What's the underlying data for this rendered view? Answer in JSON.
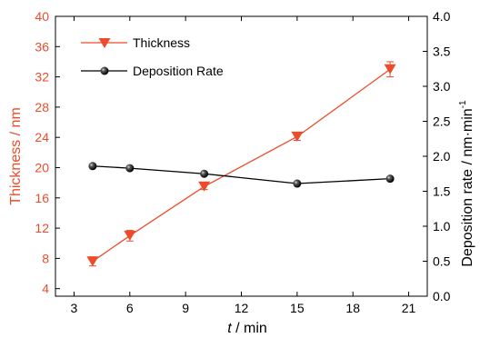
{
  "chart_data": {
    "type": "line",
    "x": {
      "label_italic": "t",
      "label_rest": " / min",
      "ticks": [
        "3",
        "6",
        "9",
        "12",
        "15",
        "18",
        "21"
      ],
      "range": [
        2,
        22
      ]
    },
    "y_left": {
      "label": "Thickness / nm",
      "ticks": [
        "4",
        "8",
        "12",
        "16",
        "20",
        "24",
        "28",
        "32",
        "36",
        "40"
      ],
      "range": [
        3,
        40
      ],
      "color": "#ee4b2b"
    },
    "y_right": {
      "label": "Deposition rate / nm·min",
      "label_sup": "-1",
      "ticks": [
        "0.0",
        "0.5",
        "1.0",
        "1.5",
        "2.0",
        "2.5",
        "3.0",
        "3.5",
        "4.0"
      ],
      "range": [
        0,
        4.0
      ],
      "color": "#000000"
    },
    "legend": {
      "placement": "top-left"
    },
    "series": [
      {
        "name": "Thickness",
        "axis": "left",
        "color": "#ee4b2b",
        "marker": "triangle-down",
        "x": [
          4,
          6,
          10,
          15,
          20
        ],
        "y": [
          7.6,
          11.0,
          17.5,
          24.1,
          33.0
        ],
        "error": [
          0.6,
          0.7,
          0.4,
          0.5,
          1.0
        ]
      },
      {
        "name": "Deposition Rate",
        "axis": "right",
        "color": "#000000",
        "marker": "sphere",
        "x": [
          4,
          6,
          10,
          15,
          20
        ],
        "y": [
          1.86,
          1.83,
          1.75,
          1.61,
          1.68
        ]
      }
    ]
  }
}
